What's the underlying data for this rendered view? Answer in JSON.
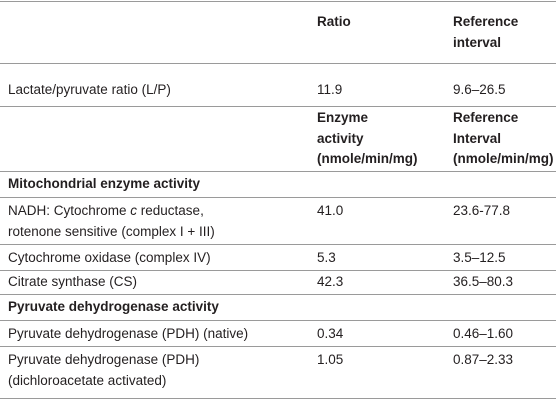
{
  "table": {
    "header": {
      "ratio": "Ratio",
      "reference_interval": [
        "Reference",
        "interval"
      ]
    },
    "lp_row": [
      "Lactate/pyruvate ratio (L/P)",
      "11.9",
      "9.6–26.5"
    ],
    "enzyme_header": {
      "activity": [
        "Enzyme",
        "activity",
        "(nmole/min/mg)"
      ],
      "reference_interval": [
        "Reference",
        "Interval",
        "(nmole/min/mg)"
      ]
    },
    "sections": [
      {
        "title": "Mitochondrial enzyme activity",
        "rows": [
          {
            "name": {
              "before": "NADH: Cytochrome ",
              "italic": "c",
              "after": " reductase,",
              "line2": "rotenone sensitive (complex I + III)"
            },
            "activity": "41.0",
            "reference": "23.6-77.8"
          },
          {
            "name": "Cytochrome oxidase (complex IV)",
            "activity": "5.3",
            "reference": "3.5–12.5"
          },
          {
            "name": "Citrate synthase (CS)",
            "activity": "42.3",
            "reference": "36.5–80.3"
          }
        ]
      },
      {
        "title": "Pyruvate dehydrogenase activity",
        "rows": [
          {
            "name": [
              "Pyruvate dehydrogenase (PDH) (native)"
            ],
            "activity": "0.34",
            "reference": "0.46–1.60"
          },
          {
            "name": [
              "Pyruvate dehydrogenase (PDH)",
              "(dichloroacetate activated)"
            ],
            "activity": "1.05",
            "reference": "0.87–2.33"
          }
        ]
      }
    ]
  }
}
